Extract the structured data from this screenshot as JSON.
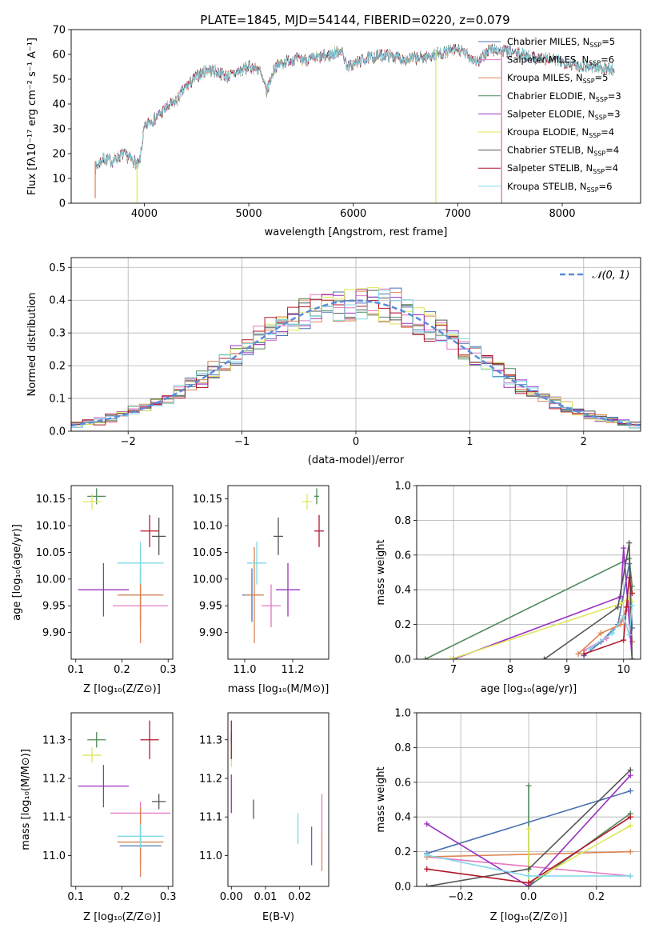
{
  "figure_title": "PLATE=1845, MJD=54144, FIBERID=0220, z=0.079",
  "series": [
    {
      "name": "Chabrier MILES",
      "nssp": "5",
      "color": "#4c72b0"
    },
    {
      "name": "Salpeter MILES",
      "nssp": "6",
      "color": "#e377c2"
    },
    {
      "name": "Kroupa MILES",
      "nssp": "5",
      "color": "#dd8452"
    },
    {
      "name": "Chabrier ELODIE",
      "nssp": "3",
      "color": "#4f8a5b"
    },
    {
      "name": "Salpeter ELODIE",
      "nssp": "3",
      "color": "#9b30c0"
    },
    {
      "name": "Kroupa ELODIE",
      "nssp": "4",
      "color": "#dfe65a"
    },
    {
      "name": "Chabrier STELIB",
      "nssp": "4",
      "color": "#555555"
    },
    {
      "name": "Salpeter STELIB",
      "nssp": "4",
      "color": "#b2182b"
    },
    {
      "name": "Kroupa STELIB",
      "nssp": "6",
      "color": "#7fd8e6"
    }
  ],
  "chart_data": [
    {
      "id": "spectrum",
      "type": "line",
      "title": "PLATE=1845, MJD=54144, FIBERID=0220, z=0.079",
      "xlabel": "wavelength [Angstrom, rest frame]",
      "ylabel": "Flux [fλ10⁻¹⁷ erg cm⁻² s⁻¹ A⁻¹]",
      "xlim": [
        3300,
        8750
      ],
      "ylim": [
        0,
        70
      ],
      "xticks": [
        "4000",
        "5000",
        "6000",
        "7000",
        "8000"
      ],
      "yticks": [
        "0",
        "10",
        "20",
        "30",
        "40",
        "50",
        "60",
        "70"
      ],
      "legend": "upper-right",
      "continuum_x": [
        3530,
        3600,
        3700,
        3800,
        3900,
        3950,
        4000,
        4050,
        4100,
        4200,
        4300,
        4400,
        4500,
        4600,
        4700,
        4800,
        4900,
        5000,
        5100,
        5170,
        5250,
        5400,
        5600,
        5800,
        5880,
        5950,
        6100,
        6300,
        6500,
        6700,
        6900,
        7000,
        7200,
        7300,
        7500,
        7700,
        7900,
        8100,
        8300,
        8500
      ],
      "continuum_y": [
        14,
        18,
        17,
        20,
        17,
        15,
        30,
        33,
        34,
        38,
        41,
        47,
        51,
        54,
        53,
        51,
        53,
        55,
        54,
        45,
        55,
        58,
        58,
        60,
        62,
        55,
        58,
        60,
        58,
        59,
        61,
        62,
        57,
        62,
        61,
        59,
        58,
        56,
        55,
        54
      ],
      "dropouts": [
        {
          "series": "Kroupa ELODIE",
          "x": 6790,
          "from": 62,
          "to": 0
        },
        {
          "series": "Kroupa MILES",
          "x": 7420,
          "from": 62,
          "to": 0
        },
        {
          "series": "Salpeter MILES",
          "x": 7420,
          "from": 60,
          "to": 0
        },
        {
          "series": "Kroupa MILES",
          "x": 3530,
          "from": 17,
          "to": 2
        },
        {
          "series": "Kroupa ELODIE",
          "x": 3930,
          "from": 15,
          "to": 0
        }
      ]
    },
    {
      "id": "residuals",
      "type": "histogram",
      "xlabel": "(data-model)/error",
      "ylabel": "Normed distribution",
      "xlim": [
        -2.5,
        2.5
      ],
      "ylim": [
        0,
        0.53
      ],
      "xticks": [
        "−2",
        "−1",
        "0",
        "1",
        "2"
      ],
      "yticks": [
        "0.0",
        "0.1",
        "0.2",
        "0.3",
        "0.4",
        "0.5"
      ],
      "bin_width": 0.1,
      "grid": true,
      "gaussian_label": "𝒩(0, 1)",
      "gaussian_color": "#5b8bd9",
      "legend": "upper-right"
    },
    {
      "id": "age-vs-Z",
      "type": "scatter-errorbars",
      "xlabel": "Z [log₁₀(Z/Z⊙)]",
      "ylabel": "age  [log₁₀(age/yr)]",
      "xlim": [
        0.09,
        0.31
      ],
      "ylim": [
        9.85,
        10.175
      ],
      "xticks": [
        "0.1",
        "0.2",
        "0.3"
      ],
      "yticks": [
        "9.90",
        "9.95",
        "10.00",
        "10.05",
        "10.10",
        "10.15"
      ],
      "points": [
        {
          "series": "Chabrier MILES",
          "x": 0.24,
          "y": 9.97,
          "xerr": 0.045,
          "yerr": 0.05
        },
        {
          "series": "Salpeter MILES",
          "x": 0.24,
          "y": 9.95,
          "xerr": 0.06,
          "yerr": 0.04
        },
        {
          "series": "Kroupa MILES",
          "x": 0.24,
          "y": 9.97,
          "xerr": 0.05,
          "yerr": 0.09
        },
        {
          "series": "Chabrier ELODIE",
          "x": 0.145,
          "y": 10.155,
          "xerr": 0.02,
          "yerr": 0.015
        },
        {
          "series": "Salpeter ELODIE",
          "x": 0.16,
          "y": 9.98,
          "xerr": 0.055,
          "yerr": 0.05
        },
        {
          "series": "Kroupa ELODIE",
          "x": 0.135,
          "y": 10.145,
          "xerr": 0.02,
          "yerr": 0.015
        },
        {
          "series": "Chabrier STELIB",
          "x": 0.28,
          "y": 10.08,
          "xerr": 0.015,
          "yerr": 0.035
        },
        {
          "series": "Salpeter STELIB",
          "x": 0.26,
          "y": 10.09,
          "xerr": 0.02,
          "yerr": 0.03
        },
        {
          "series": "Kroupa STELIB",
          "x": 0.24,
          "y": 10.03,
          "xerr": 0.05,
          "yerr": 0.04
        }
      ]
    },
    {
      "id": "age-vs-mass",
      "type": "scatter-errorbars",
      "xlabel": "mass [log₁₀(M/M⊙)]",
      "ylabel": "",
      "xlim": [
        10.93,
        11.35
      ],
      "ylim": [
        9.85,
        10.175
      ],
      "xticks": [
        "11.0",
        "11.2"
      ],
      "yticks": [
        "9.90",
        "9.95",
        "10.00",
        "10.05",
        "10.10",
        "10.15"
      ],
      "points": [
        {
          "series": "Chabrier MILES",
          "x": 11.03,
          "y": 9.97,
          "xerr": 0.04,
          "yerr": 0.05
        },
        {
          "series": "Salpeter MILES",
          "x": 11.11,
          "y": 9.95,
          "xerr": 0.04,
          "yerr": 0.04
        },
        {
          "series": "Kroupa MILES",
          "x": 11.04,
          "y": 9.97,
          "xerr": 0.04,
          "yerr": 0.09
        },
        {
          "series": "Chabrier ELODIE",
          "x": 11.3,
          "y": 10.155,
          "xerr": 0.01,
          "yerr": 0.015
        },
        {
          "series": "Salpeter ELODIE",
          "x": 11.18,
          "y": 9.98,
          "xerr": 0.05,
          "yerr": 0.05
        },
        {
          "series": "Kroupa ELODIE",
          "x": 11.26,
          "y": 10.145,
          "xerr": 0.02,
          "yerr": 0.015
        },
        {
          "series": "Chabrier STELIB",
          "x": 11.14,
          "y": 10.08,
          "xerr": 0.02,
          "yerr": 0.035
        },
        {
          "series": "Salpeter STELIB",
          "x": 11.31,
          "y": 10.09,
          "xerr": 0.02,
          "yerr": 0.03
        },
        {
          "series": "Kroupa STELIB",
          "x": 11.05,
          "y": 10.03,
          "xerr": 0.04,
          "yerr": 0.04
        }
      ]
    },
    {
      "id": "massweight-vs-age",
      "type": "line",
      "xlabel": "age  [log₁₀(age/yr)]",
      "ylabel": "mass weight",
      "xlim": [
        6.35,
        10.3
      ],
      "ylim": [
        0,
        1
      ],
      "xticks": [
        "7",
        "8",
        "9",
        "10"
      ],
      "yticks": [
        "0.0",
        "0.2",
        "0.4",
        "0.6",
        "0.8",
        "1.0"
      ],
      "grid": true,
      "series": [
        {
          "series": "Chabrier MILES",
          "x": [
            9.3,
            9.6,
            9.9,
            10.1,
            10.15
          ],
          "y": [
            0.02,
            0.1,
            0.2,
            0.55,
            0.18
          ]
        },
        {
          "series": "Salpeter MILES",
          "x": [
            9.3,
            9.7,
            9.95,
            10.1,
            10.15
          ],
          "y": [
            0.05,
            0.12,
            0.22,
            0.3,
            0.1
          ]
        },
        {
          "series": "Kroupa MILES",
          "x": [
            9.2,
            9.6,
            9.95,
            10.1,
            10.15
          ],
          "y": [
            0.03,
            0.15,
            0.2,
            0.35,
            0.1
          ]
        },
        {
          "series": "Chabrier ELODIE",
          "x": [
            6.5,
            10.1,
            10.15
          ],
          "y": [
            0.0,
            0.58,
            0.42
          ]
        },
        {
          "series": "Salpeter ELODIE",
          "x": [
            7.0,
            9.95,
            10.0,
            10.15
          ],
          "y": [
            0.0,
            0.36,
            0.64,
            0.0
          ]
        },
        {
          "series": "Kroupa ELODIE",
          "x": [
            6.95,
            9.95,
            10.1,
            10.15
          ],
          "y": [
            0.0,
            0.32,
            0.35,
            0.33
          ]
        },
        {
          "series": "Chabrier STELIB",
          "x": [
            8.6,
            9.9,
            10.1,
            10.15
          ],
          "y": [
            0.0,
            0.3,
            0.67,
            0.0
          ]
        },
        {
          "series": "Salpeter STELIB",
          "x": [
            9.3,
            10.0,
            10.05,
            10.1,
            10.15
          ],
          "y": [
            0.03,
            0.11,
            0.3,
            0.47,
            0.38
          ]
        },
        {
          "series": "Kroupa STELIB",
          "x": [
            9.4,
            9.8,
            10.0,
            10.1,
            10.15
          ],
          "y": [
            0.06,
            0.15,
            0.25,
            0.14,
            0.31
          ]
        }
      ]
    },
    {
      "id": "mass-vs-Z",
      "type": "scatter-errorbars",
      "xlabel": "Z [log₁₀(Z/Z⊙)]",
      "ylabel": "mass [log₁₀(M/M⊙)]",
      "xlim": [
        0.09,
        0.31
      ],
      "ylim": [
        10.92,
        11.37
      ],
      "xticks": [
        "0.1",
        "0.2",
        "0.3"
      ],
      "yticks": [
        "11.0",
        "11.1",
        "11.2",
        "11.3"
      ],
      "points": [
        {
          "series": "Chabrier MILES",
          "x": 0.24,
          "y": 11.025,
          "xerr": 0.045,
          "yerr": 0.05
        },
        {
          "series": "Salpeter MILES",
          "x": 0.24,
          "y": 11.11,
          "xerr": 0.065,
          "yerr": 0.03
        },
        {
          "series": "Kroupa MILES",
          "x": 0.24,
          "y": 11.035,
          "xerr": 0.05,
          "yerr": 0.09
        },
        {
          "series": "Chabrier ELODIE",
          "x": 0.145,
          "y": 11.3,
          "xerr": 0.02,
          "yerr": 0.02
        },
        {
          "series": "Salpeter ELODIE",
          "x": 0.16,
          "y": 11.18,
          "xerr": 0.055,
          "yerr": 0.055
        },
        {
          "series": "Kroupa ELODIE",
          "x": 0.135,
          "y": 11.26,
          "xerr": 0.02,
          "yerr": 0.02
        },
        {
          "series": "Chabrier STELIB",
          "x": 0.28,
          "y": 11.14,
          "xerr": 0.015,
          "yerr": 0.02
        },
        {
          "series": "Salpeter STELIB",
          "x": 0.26,
          "y": 11.3,
          "xerr": 0.02,
          "yerr": 0.05
        },
        {
          "series": "Kroupa STELIB",
          "x": 0.24,
          "y": 11.05,
          "xerr": 0.05,
          "yerr": 0.03
        }
      ]
    },
    {
      "id": "mass-vs-ebv",
      "type": "scatter-errorbars",
      "xlabel": "E(B-V)",
      "ylabel": "",
      "xlim": [
        -0.001,
        0.0285
      ],
      "ylim": [
        10.92,
        11.37
      ],
      "xticks": [
        "0.00",
        "0.01",
        "0.02"
      ],
      "yticks": [
        "11.0",
        "11.1",
        "11.2",
        "11.3"
      ],
      "points": [
        {
          "series": "Chabrier MILES",
          "x": 0.0235,
          "y": 11.025,
          "xerr": 0,
          "yerr": 0.05
        },
        {
          "series": "Salpeter MILES",
          "x": 0.0265,
          "y": 11.11,
          "xerr": 0,
          "yerr": 0.05
        },
        {
          "series": "Kroupa MILES",
          "x": 0.0265,
          "y": 11.01,
          "xerr": 0,
          "yerr": 0.05
        },
        {
          "series": "Chabrier ELODIE",
          "x": 0.0,
          "y": 11.3,
          "xerr": 0,
          "yerr": 0.02
        },
        {
          "series": "Salpeter ELODIE",
          "x": 0.0,
          "y": 11.16,
          "xerr": 0,
          "yerr": 0.05
        },
        {
          "series": "Kroupa ELODIE",
          "x": 0.0,
          "y": 11.26,
          "xerr": 0,
          "yerr": 0.03
        },
        {
          "series": "Chabrier STELIB",
          "x": 0.0065,
          "y": 11.12,
          "xerr": 0,
          "yerr": 0.025
        },
        {
          "series": "Salpeter STELIB",
          "x": 0.0,
          "y": 11.3,
          "xerr": 0,
          "yerr": 0.05
        },
        {
          "series": "Kroupa STELIB",
          "x": 0.0195,
          "y": 11.07,
          "xerr": 0,
          "yerr": 0.04
        }
      ]
    },
    {
      "id": "massweight-vs-Z",
      "type": "line",
      "xlabel": "Z [log₁₀(Z/Z⊙)]",
      "ylabel": "mass weight",
      "xlim": [
        -0.33,
        0.33
      ],
      "ylim": [
        0,
        1
      ],
      "xticks": [
        "−0.2",
        "0.0",
        "0.2"
      ],
      "yticks": [
        "0.0",
        "0.2",
        "0.4",
        "0.6",
        "0.8",
        "1.0"
      ],
      "grid": true,
      "series": [
        {
          "series": "Chabrier MILES",
          "x": [
            -0.3,
            0.3
          ],
          "y": [
            0.19,
            0.55
          ]
        },
        {
          "series": "Salpeter MILES",
          "x": [
            -0.3,
            0.3
          ],
          "y": [
            0.17,
            0.06
          ]
        },
        {
          "series": "Kroupa MILES",
          "x": [
            -0.3,
            0.3
          ],
          "y": [
            0.17,
            0.2
          ]
        },
        {
          "series": "Chabrier ELODIE",
          "x": [
            0.0,
            0.0,
            0.3
          ],
          "y": [
            0.58,
            0.0,
            0.42
          ]
        },
        {
          "series": "Salpeter ELODIE",
          "x": [
            -0.3,
            0.0,
            0.3
          ],
          "y": [
            0.36,
            0.0,
            0.64
          ]
        },
        {
          "series": "Kroupa ELODIE",
          "x": [
            0.0,
            0.0,
            0.3
          ],
          "y": [
            0.33,
            0.02,
            0.35
          ]
        },
        {
          "series": "Chabrier STELIB",
          "x": [
            -0.3,
            0.0,
            0.3
          ],
          "y": [
            0.0,
            0.1,
            0.67
          ]
        },
        {
          "series": "Salpeter STELIB",
          "x": [
            -0.3,
            0.0,
            0.3
          ],
          "y": [
            0.1,
            0.02,
            0.4
          ]
        },
        {
          "series": "Kroupa STELIB",
          "x": [
            -0.3,
            0.0,
            0.3
          ],
          "y": [
            0.18,
            0.06,
            0.06
          ]
        }
      ]
    }
  ]
}
